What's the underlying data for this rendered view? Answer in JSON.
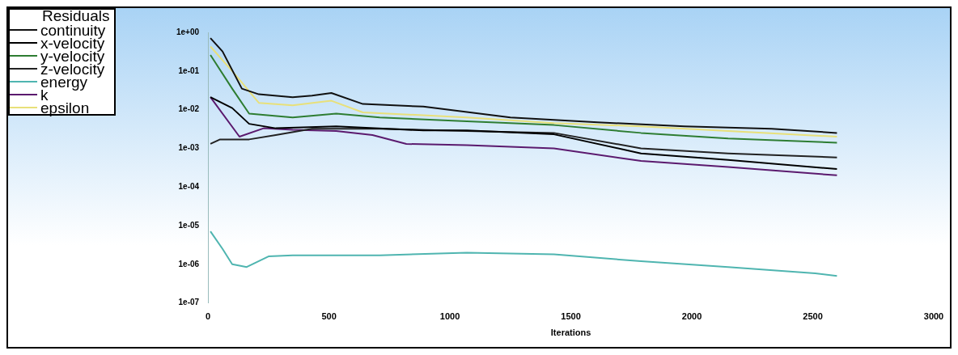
{
  "chart_data": {
    "type": "line",
    "xlabel": "Iterations",
    "legend_title": "Residuals",
    "legend": "top left",
    "log": "y",
    "grid": false,
    "marker": "none",
    "line_style": "solid",
    "xlim": [
      0,
      3000
    ],
    "xticks": [
      0,
      500,
      1000,
      1500,
      2000,
      2500,
      3000
    ],
    "ylim": [
      1e-07,
      1
    ],
    "yticks": [
      {
        "value": 1,
        "label": "1e+00"
      },
      {
        "value": 0.1,
        "label": "1e-01"
      },
      {
        "value": 0.01,
        "label": "1e-02"
      },
      {
        "value": 0.001,
        "label": "1e-03"
      },
      {
        "value": 0.0001,
        "label": "1e-04"
      },
      {
        "value": 1e-05,
        "label": "1e-05"
      },
      {
        "value": 1e-06,
        "label": "1e-06"
      },
      {
        "value": 1e-07,
        "label": "1e-07"
      }
    ],
    "series": [
      {
        "name": "continuity",
        "color": "#111111",
        "x": [
          10,
          60,
          140,
          210,
          350,
          430,
          510,
          640,
          890,
          1250,
          1610,
          1970,
          2330,
          2600
        ],
        "values": [
          0.71,
          0.32,
          0.035,
          0.025,
          0.021,
          0.023,
          0.027,
          0.014,
          0.012,
          0.0063,
          0.0047,
          0.0037,
          0.0032,
          0.0025
        ]
      },
      {
        "name": "x-velocity",
        "color": "#000000",
        "x": [
          10,
          100,
          170,
          280,
          530,
          890,
          1070,
          1430,
          1790,
          2150,
          2600
        ],
        "values": [
          0.021,
          0.011,
          0.0043,
          0.0033,
          0.0037,
          0.0029,
          0.0029,
          0.0023,
          0.00074,
          0.0005,
          0.00029
        ]
      },
      {
        "name": "y-velocity",
        "color": "#2e7d32",
        "x": [
          10,
          100,
          170,
          350,
          530,
          710,
          1070,
          1430,
          1790,
          2150,
          2600
        ],
        "values": [
          0.26,
          0.035,
          0.0079,
          0.0063,
          0.0079,
          0.0063,
          0.005,
          0.004,
          0.0025,
          0.0018,
          0.0014
        ]
      },
      {
        "name": "z-velocity",
        "color": "#222222",
        "x": [
          10,
          50,
          170,
          280,
          430,
          710,
          1070,
          1430,
          1790,
          2150,
          2600
        ],
        "values": [
          0.0013,
          0.0017,
          0.0017,
          0.0022,
          0.0032,
          0.0032,
          0.0028,
          0.0025,
          0.001,
          0.00074,
          0.00058
        ]
      },
      {
        "name": "energy",
        "color": "#4fb5b0",
        "x": [
          10,
          60,
          100,
          160,
          250,
          350,
          710,
          1070,
          1430,
          1790,
          2150,
          2510,
          2600
        ],
        "values": [
          7.1e-06,
          2.5e-06,
          1e-06,
          8.5e-07,
          1.6e-06,
          1.7e-06,
          1.7e-06,
          2e-06,
          1.8e-06,
          1.2e-06,
          8.5e-07,
          5.8e-07,
          5e-07
        ]
      },
      {
        "name": "k",
        "color": "#5b1a6e",
        "x": [
          10,
          130,
          230,
          350,
          530,
          680,
          820,
          1070,
          1430,
          1790,
          2150,
          2600
        ],
        "values": [
          0.021,
          0.002,
          0.0033,
          0.003,
          0.0028,
          0.0022,
          0.0013,
          0.0012,
          0.001,
          0.00047,
          0.00033,
          0.0002
        ]
      },
      {
        "name": "epsilon",
        "color": "#e8e07a",
        "x": [
          10,
          100,
          210,
          350,
          510,
          640,
          1070,
          1430,
          1790,
          2150,
          2600
        ],
        "values": [
          0.43,
          0.1,
          0.015,
          0.013,
          0.017,
          0.0085,
          0.0063,
          0.0045,
          0.0037,
          0.0028,
          0.002
        ]
      }
    ]
  }
}
